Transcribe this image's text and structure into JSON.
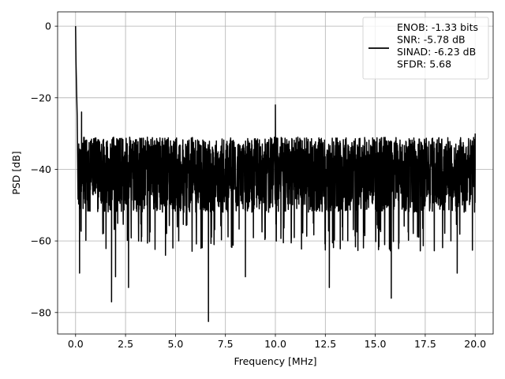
{
  "chart_data": {
    "type": "line",
    "title": "",
    "xlabel": "Frequency [MHz]",
    "ylabel": "PSD [dB]",
    "xlim": [
      -0.9,
      20.9
    ],
    "ylim": [
      -86,
      4
    ],
    "xticks": [
      0.0,
      2.5,
      5.0,
      7.5,
      10.0,
      12.5,
      15.0,
      17.5,
      20.0
    ],
    "xtick_labels": [
      "0.0",
      "2.5",
      "5.0",
      "7.5",
      "10.0",
      "12.5",
      "15.0",
      "17.5",
      "20.0"
    ],
    "yticks": [
      0,
      -20,
      -40,
      -60,
      -80
    ],
    "ytick_labels": [
      "0",
      "−20",
      "−40",
      "−60",
      "−80"
    ],
    "grid": true,
    "legend_position": "top-right",
    "series": [
      {
        "name": "ENOB: -1.33 bits\nSNR: -5.78 dB\nSINAD: -6.23 dB\nSFDR: 5.68",
        "color": "#000000",
        "noise_floor": {
          "x_range": [
            0.0,
            20.0
          ],
          "upper_envelope_db": -31,
          "lower_envelope_db": -52,
          "typical_db": -41
        },
        "points": [
          {
            "x": 0.0,
            "y": 0.0
          },
          {
            "x": 0.02,
            "y": -10
          },
          {
            "x": 0.05,
            "y": -18
          },
          {
            "x": 0.08,
            "y": -25
          },
          {
            "x": 0.15,
            "y": -48
          },
          {
            "x": 0.2,
            "y": -69
          },
          {
            "x": 0.3,
            "y": -24
          },
          {
            "x": 1.8,
            "y": -77
          },
          {
            "x": 2.0,
            "y": -70
          },
          {
            "x": 2.65,
            "y": -73
          },
          {
            "x": 4.5,
            "y": -64
          },
          {
            "x": 6.65,
            "y": -82.5
          },
          {
            "x": 8.5,
            "y": -70
          },
          {
            "x": 10.0,
            "y": -22
          },
          {
            "x": 12.7,
            "y": -73
          },
          {
            "x": 15.8,
            "y": -76
          },
          {
            "x": 19.1,
            "y": -69
          },
          {
            "x": 20.0,
            "y": -30
          }
        ]
      }
    ]
  }
}
